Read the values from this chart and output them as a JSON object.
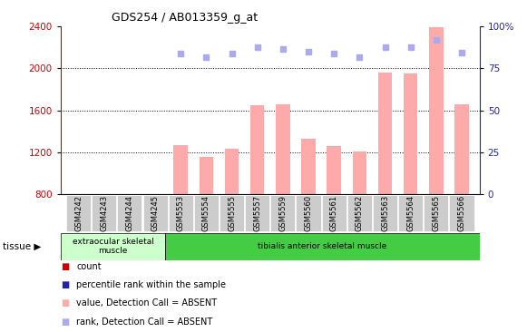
{
  "title": "GDS254 / AB013359_g_at",
  "categories": [
    "GSM4242",
    "GSM4243",
    "GSM4244",
    "GSM4245",
    "GSM5553",
    "GSM5554",
    "GSM5555",
    "GSM5557",
    "GSM5559",
    "GSM5560",
    "GSM5561",
    "GSM5562",
    "GSM5563",
    "GSM5564",
    "GSM5565",
    "GSM5566"
  ],
  "bar_values": [
    null,
    null,
    null,
    null,
    1270,
    1155,
    1230,
    1650,
    1660,
    1330,
    1260,
    1210,
    1960,
    1950,
    2390,
    1660
  ],
  "dot_values": [
    null,
    null,
    null,
    null,
    2140,
    2110,
    2140,
    2200,
    2190,
    2160,
    2140,
    2110,
    2200,
    2200,
    2270,
    2150
  ],
  "ylim_left": [
    800,
    2400
  ],
  "ylim_right": [
    0,
    100
  ],
  "yticks_left": [
    800,
    1200,
    1600,
    2000,
    2400
  ],
  "yticks_right": [
    0,
    25,
    50,
    75,
    100
  ],
  "bar_color": "#ffaaaa",
  "dot_color": "#aaaaee",
  "tissue_groups": [
    {
      "label": "extraocular skeletal\nmuscle",
      "start": 0,
      "end": 4,
      "color": "#ccffcc"
    },
    {
      "label": "tibialis anterior skeletal muscle",
      "start": 4,
      "end": 16,
      "color": "#44cc44"
    }
  ],
  "legend_items": [
    {
      "label": "count",
      "color": "#cc0000"
    },
    {
      "label": "percentile rank within the sample",
      "color": "#2222aa"
    },
    {
      "label": "value, Detection Call = ABSENT",
      "color": "#ffaaaa"
    },
    {
      "label": "rank, Detection Call = ABSENT",
      "color": "#aaaaee"
    }
  ],
  "tissue_label": "tissue",
  "left_axis_color": "#cc0000",
  "right_axis_color": "#2222aa",
  "background_color": "#ffffff"
}
